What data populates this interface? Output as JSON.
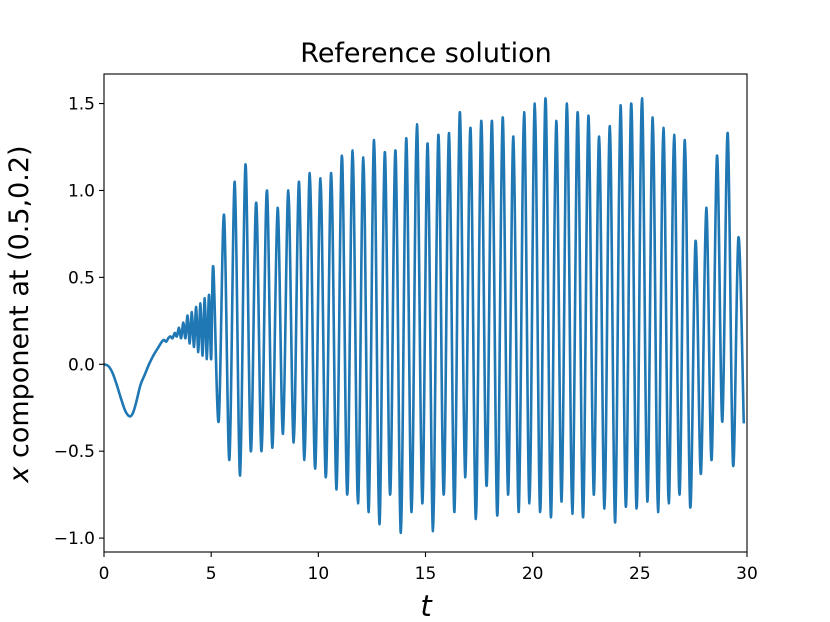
{
  "chart_data": {
    "type": "line",
    "title": "Reference solution",
    "xlabel": "t",
    "ylabel_var": "x",
    "ylabel_rest": " component at (0.5,0.2)",
    "xlim": [
      0,
      30
    ],
    "ylim": [
      -1.08,
      1.67
    ],
    "xticks": [
      0,
      5,
      10,
      15,
      20,
      25,
      30
    ],
    "xtick_labels": [
      "0",
      "5",
      "10",
      "15",
      "20",
      "25",
      "30"
    ],
    "yticks": [
      -1.0,
      -0.5,
      0.0,
      0.5,
      1.0,
      1.5
    ],
    "ytick_labels": [
      "−1.0",
      "−0.5",
      "0.0",
      "0.5",
      "1.0",
      "1.5"
    ],
    "grid": false,
    "line_color": "#1f77b4",
    "series": [
      {
        "x": [
          0,
          0.2,
          0.4,
          0.6,
          0.8,
          1.0,
          1.2,
          1.35,
          1.5,
          1.7,
          1.9,
          2.1,
          2.3,
          2.5,
          2.7,
          2.8,
          2.9,
          3.0,
          3.1,
          3.2,
          3.3,
          3.4,
          3.5,
          3.6,
          3.7,
          3.8,
          3.9,
          4.0,
          4.1,
          4.2,
          4.3,
          4.4,
          4.5,
          4.6,
          4.7,
          4.8,
          4.9,
          5.0
        ],
        "y": [
          0.0,
          -0.01,
          -0.05,
          -0.12,
          -0.2,
          -0.27,
          -0.3,
          -0.28,
          -0.22,
          -0.12,
          -0.06,
          0.0,
          0.05,
          0.09,
          0.13,
          0.14,
          0.13,
          0.15,
          0.16,
          0.15,
          0.18,
          0.16,
          0.21,
          0.15,
          0.24,
          0.15,
          0.28,
          0.12,
          0.3,
          0.1,
          0.33,
          0.07,
          0.35,
          0.05,
          0.38,
          0.03,
          0.4,
          0.03
        ]
      },
      {
        "peaks_start": 5.1,
        "peaks_period": 0.5,
        "peaks": [
          0.56,
          0.86,
          1.05,
          1.15,
          0.93,
          1.0,
          0.9,
          1.0,
          1.05,
          1.1,
          1.07,
          1.1,
          1.2,
          1.23,
          1.19,
          1.29,
          1.22,
          1.23,
          1.3,
          1.38,
          1.27,
          1.32,
          1.33,
          1.45,
          1.36,
          1.4,
          1.4,
          1.42,
          1.31,
          1.45,
          1.5,
          1.53,
          1.4,
          1.5,
          1.45,
          1.43,
          1.31,
          1.37,
          1.49,
          1.5,
          1.53,
          1.42,
          1.36,
          1.32,
          1.29,
          0.71,
          0.9,
          1.2,
          1.33,
          0.73
        ],
        "troughs": [
          -0.33,
          -0.55,
          -0.64,
          -0.5,
          -0.5,
          -0.48,
          -0.4,
          -0.45,
          -0.55,
          -0.6,
          -0.65,
          -0.72,
          -0.75,
          -0.8,
          -0.85,
          -0.92,
          -0.75,
          -0.97,
          -0.85,
          -0.8,
          -0.96,
          -0.75,
          -0.85,
          -0.65,
          -0.89,
          -0.7,
          -0.87,
          -0.75,
          -0.85,
          -0.8,
          -0.85,
          -0.88,
          -0.79,
          -0.86,
          -0.88,
          -0.75,
          -0.83,
          -0.91,
          -0.82,
          -0.83,
          -0.79,
          -0.85,
          -0.8,
          -0.75,
          -0.82,
          -0.63,
          -0.55,
          -0.33,
          -0.58,
          -0.34
        ]
      }
    ]
  }
}
